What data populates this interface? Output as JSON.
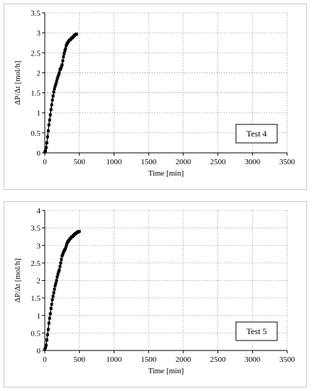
{
  "chart_data": [
    {
      "type": "scatter",
      "title": "",
      "xlabel": "Time [min]",
      "ylabel": "ΔP/Δt [mol/h]",
      "xlim": [
        0,
        3500
      ],
      "ylim": [
        0,
        3.5
      ],
      "xticks": [
        0,
        500,
        1000,
        1500,
        2000,
        2500,
        3000,
        3500
      ],
      "yticks": [
        0,
        0.5,
        1,
        1.5,
        2,
        2.5,
        3,
        3.5
      ],
      "xtick_labels": [
        "0",
        "500",
        "1000",
        "1500",
        "2000",
        "2500",
        "3000",
        "3500"
      ],
      "ytick_labels": [
        "0",
        "0.5",
        "1",
        "1.5",
        "2",
        "2.5",
        "3",
        "3.5"
      ],
      "grid": "dotted",
      "annotation": "Test 4",
      "series": [
        {
          "marker": "filled-square",
          "connected": true,
          "x": [
            0,
            10,
            20,
            30,
            40,
            50,
            60,
            70,
            80,
            90,
            100,
            110,
            120,
            130,
            140,
            150,
            160,
            170,
            180,
            190,
            200,
            210,
            220,
            230,
            240,
            250,
            260,
            270,
            280,
            290,
            300,
            310,
            320,
            330,
            340,
            350,
            360,
            370,
            380,
            390,
            400,
            410,
            420,
            430,
            440,
            450,
            460
          ],
          "y": [
            0.02,
            0.05,
            0.13,
            0.25,
            0.4,
            0.55,
            0.7,
            0.82,
            0.95,
            1.08,
            1.2,
            1.32,
            1.42,
            1.52,
            1.6,
            1.67,
            1.72,
            1.78,
            1.85,
            1.9,
            1.95,
            2.0,
            2.08,
            2.1,
            2.15,
            2.2,
            2.3,
            2.4,
            2.48,
            2.55,
            2.6,
            2.68,
            2.72,
            2.75,
            2.78,
            2.8,
            2.82,
            2.83,
            2.85,
            2.87,
            2.88,
            2.9,
            2.92,
            2.94,
            2.95,
            2.96,
            2.97
          ]
        }
      ]
    },
    {
      "type": "scatter",
      "title": "",
      "xlabel": "Time [min]",
      "ylabel": "ΔP/Δt [mol/h]",
      "xlim": [
        0,
        3500
      ],
      "ylim": [
        0,
        4
      ],
      "xticks": [
        0,
        500,
        1000,
        1500,
        2000,
        2500,
        3000,
        3500
      ],
      "yticks": [
        0,
        0.5,
        1,
        1.5,
        2,
        2.5,
        3,
        3.5,
        4
      ],
      "xtick_labels": [
        "0",
        "500",
        "1000",
        "1500",
        "2000",
        "2500",
        "3000",
        "3500"
      ],
      "ytick_labels": [
        "0",
        "0.5",
        "1",
        "1.5",
        "2",
        "2.5",
        "3",
        "3.5",
        "4"
      ],
      "grid": "dotted",
      "annotation": "Test 5",
      "series": [
        {
          "marker": "filled-square",
          "connected": true,
          "x": [
            0,
            10,
            20,
            30,
            40,
            50,
            60,
            70,
            80,
            90,
            100,
            110,
            120,
            130,
            140,
            150,
            160,
            170,
            180,
            190,
            200,
            210,
            220,
            230,
            240,
            250,
            260,
            270,
            280,
            290,
            300,
            310,
            320,
            330,
            340,
            350,
            360,
            370,
            380,
            390,
            400,
            410,
            420,
            430,
            440,
            450,
            460,
            470,
            480,
            490,
            500
          ],
          "y": [
            0.03,
            0.08,
            0.15,
            0.3,
            0.45,
            0.6,
            0.78,
            0.92,
            1.05,
            1.2,
            1.32,
            1.45,
            1.55,
            1.65,
            1.75,
            1.85,
            1.92,
            2.0,
            2.1,
            2.18,
            2.25,
            2.3,
            2.4,
            2.5,
            2.6,
            2.7,
            2.75,
            2.8,
            2.85,
            2.88,
            2.92,
            2.98,
            3.05,
            3.1,
            3.12,
            3.15,
            3.18,
            3.2,
            3.22,
            3.25,
            3.25,
            3.28,
            3.3,
            3.32,
            3.33,
            3.35,
            3.36,
            3.38,
            3.38,
            3.4,
            3.4
          ]
        }
      ]
    }
  ]
}
